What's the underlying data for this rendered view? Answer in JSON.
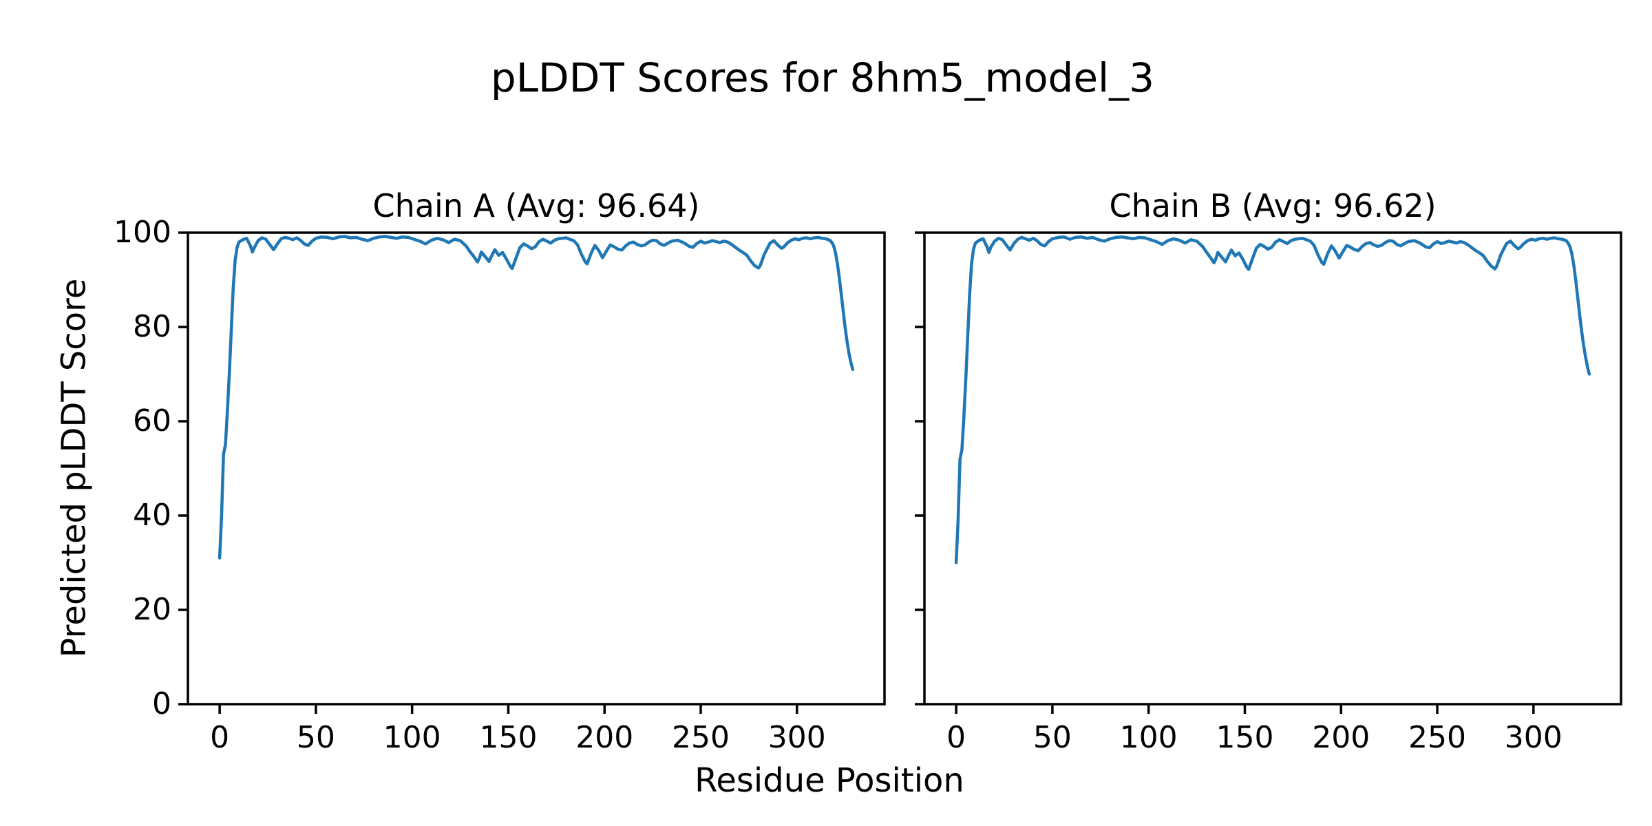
{
  "figure": {
    "suptitle": "pLDDT Scores for 8hm5_model_3",
    "xlabel": "Residue Position",
    "ylabel": "Predicted pLDDT Score"
  },
  "chart_data": [
    {
      "type": "line",
      "title": "Chain A (Avg: 96.64)",
      "chain": "A",
      "average_plddt": 96.64,
      "line_color": "#1f77b4",
      "xlim": [
        -16.5,
        345.5
      ],
      "ylim": [
        0,
        100
      ],
      "xticks": [
        0,
        50,
        100,
        150,
        200,
        250,
        300
      ],
      "yticks": [
        0,
        20,
        40,
        60,
        80,
        100
      ],
      "ytick_labels_visible": true,
      "grid": false,
      "legend": "none",
      "points": [
        [
          0,
          31
        ],
        [
          1,
          40
        ],
        [
          2,
          53
        ],
        [
          3,
          55
        ],
        [
          4,
          62
        ],
        [
          5,
          70
        ],
        [
          6,
          79
        ],
        [
          7,
          88
        ],
        [
          8,
          94
        ],
        [
          9,
          96.8
        ],
        [
          10,
          98.0
        ],
        [
          12,
          98.5
        ],
        [
          14,
          98.8
        ],
        [
          16,
          97.2
        ],
        [
          17,
          95.9
        ],
        [
          18,
          96.8
        ],
        [
          20,
          98.3
        ],
        [
          22,
          98.9
        ],
        [
          24,
          98.6
        ],
        [
          26,
          97.5
        ],
        [
          28,
          96.4
        ],
        [
          30,
          97.6
        ],
        [
          32,
          98.7
        ],
        [
          34,
          99.0
        ],
        [
          36,
          98.8
        ],
        [
          38,
          98.5
        ],
        [
          40,
          98.9
        ],
        [
          42,
          98.4
        ],
        [
          44,
          97.6
        ],
        [
          46,
          97.3
        ],
        [
          48,
          98.2
        ],
        [
          50,
          98.8
        ],
        [
          53,
          99.1
        ],
        [
          56,
          99.0
        ],
        [
          59,
          98.7
        ],
        [
          62,
          99.1
        ],
        [
          65,
          99.2
        ],
        [
          68,
          98.9
        ],
        [
          71,
          99.0
        ],
        [
          74,
          98.6
        ],
        [
          77,
          98.3
        ],
        [
          80,
          98.8
        ],
        [
          83,
          99.1
        ],
        [
          86,
          99.2
        ],
        [
          89,
          99.0
        ],
        [
          92,
          98.8
        ],
        [
          95,
          99.1
        ],
        [
          98,
          99.0
        ],
        [
          101,
          98.6
        ],
        [
          104,
          98.2
        ],
        [
          107,
          97.6
        ],
        [
          110,
          98.4
        ],
        [
          113,
          98.8
        ],
        [
          116,
          98.5
        ],
        [
          119,
          97.9
        ],
        [
          122,
          98.6
        ],
        [
          125,
          98.3
        ],
        [
          128,
          97.2
        ],
        [
          130,
          96.0
        ],
        [
          132,
          95.0
        ],
        [
          134,
          93.8
        ],
        [
          135,
          94.6
        ],
        [
          136,
          95.9
        ],
        [
          138,
          94.9
        ],
        [
          140,
          93.9
        ],
        [
          141,
          94.8
        ],
        [
          143,
          96.4
        ],
        [
          145,
          95.2
        ],
        [
          147,
          95.8
        ],
        [
          149,
          94.4
        ],
        [
          151,
          92.9
        ],
        [
          152,
          92.4
        ],
        [
          154,
          94.6
        ],
        [
          156,
          96.8
        ],
        [
          158,
          97.6
        ],
        [
          160,
          97.2
        ],
        [
          162,
          96.6
        ],
        [
          164,
          97.0
        ],
        [
          166,
          98.1
        ],
        [
          168,
          98.6
        ],
        [
          170,
          98.2
        ],
        [
          172,
          97.8
        ],
        [
          174,
          98.4
        ],
        [
          176,
          98.7
        ],
        [
          178,
          98.8
        ],
        [
          180,
          98.9
        ],
        [
          182,
          98.6
        ],
        [
          184,
          98.3
        ],
        [
          186,
          97.4
        ],
        [
          188,
          95.4
        ],
        [
          190,
          93.8
        ],
        [
          191,
          93.4
        ],
        [
          193,
          95.6
        ],
        [
          195,
          97.3
        ],
        [
          197,
          96.2
        ],
        [
          199,
          94.7
        ],
        [
          201,
          96.1
        ],
        [
          203,
          97.4
        ],
        [
          205,
          97.0
        ],
        [
          207,
          96.5
        ],
        [
          209,
          96.3
        ],
        [
          211,
          97.2
        ],
        [
          213,
          97.8
        ],
        [
          215,
          98.0
        ],
        [
          217,
          97.5
        ],
        [
          219,
          97.2
        ],
        [
          221,
          97.4
        ],
        [
          223,
          98.0
        ],
        [
          225,
          98.4
        ],
        [
          227,
          98.3
        ],
        [
          229,
          97.6
        ],
        [
          231,
          97.3
        ],
        [
          233,
          97.8
        ],
        [
          235,
          98.2
        ],
        [
          238,
          98.4
        ],
        [
          241,
          97.9
        ],
        [
          244,
          97.1
        ],
        [
          246,
          96.9
        ],
        [
          248,
          97.7
        ],
        [
          250,
          98.2
        ],
        [
          252,
          97.8
        ],
        [
          254,
          98.0
        ],
        [
          256,
          98.3
        ],
        [
          258,
          98.1
        ],
        [
          260,
          97.9
        ],
        [
          262,
          98.2
        ],
        [
          264,
          98.0
        ],
        [
          266,
          97.5
        ],
        [
          268,
          96.9
        ],
        [
          270,
          96.3
        ],
        [
          272,
          95.8
        ],
        [
          274,
          95.2
        ],
        [
          276,
          94.0
        ],
        [
          278,
          93.0
        ],
        [
          280,
          92.5
        ],
        [
          281,
          93.1
        ],
        [
          283,
          95.4
        ],
        [
          285,
          97.0
        ],
        [
          286,
          97.8
        ],
        [
          288,
          98.3
        ],
        [
          290,
          97.4
        ],
        [
          292,
          96.7
        ],
        [
          293,
          96.9
        ],
        [
          295,
          97.8
        ],
        [
          297,
          98.4
        ],
        [
          299,
          98.7
        ],
        [
          301,
          98.5
        ],
        [
          303,
          98.8
        ],
        [
          305,
          98.9
        ],
        [
          307,
          98.7
        ],
        [
          309,
          98.9
        ],
        [
          311,
          99.0
        ],
        [
          313,
          98.8
        ],
        [
          315,
          98.7
        ],
        [
          317,
          98.4
        ],
        [
          318,
          98.0
        ],
        [
          319,
          97.3
        ],
        [
          320,
          95.8
        ],
        [
          321,
          93.5
        ],
        [
          322,
          90.5
        ],
        [
          323,
          87.0
        ],
        [
          324,
          83.5
        ],
        [
          325,
          80.0
        ],
        [
          326,
          77.0
        ],
        [
          327,
          74.5
        ],
        [
          328,
          72.5
        ],
        [
          329,
          71.0
        ]
      ]
    },
    {
      "type": "line",
      "title": "Chain B (Avg: 96.62)",
      "chain": "B",
      "average_plddt": 96.62,
      "line_color": "#1f77b4",
      "xlim": [
        -16.5,
        345.5
      ],
      "ylim": [
        0,
        100
      ],
      "xticks": [
        0,
        50,
        100,
        150,
        200,
        250,
        300
      ],
      "yticks": [
        0,
        20,
        40,
        60,
        80,
        100
      ],
      "ytick_labels_visible": false,
      "grid": false,
      "legend": "none",
      "points": [
        [
          0,
          30
        ],
        [
          1,
          39
        ],
        [
          2,
          52
        ],
        [
          3,
          54
        ],
        [
          4,
          61
        ],
        [
          5,
          69
        ],
        [
          6,
          78
        ],
        [
          7,
          87
        ],
        [
          8,
          93.5
        ],
        [
          9,
          96.5
        ],
        [
          10,
          97.8
        ],
        [
          12,
          98.4
        ],
        [
          14,
          98.7
        ],
        [
          16,
          97.0
        ],
        [
          17,
          95.8
        ],
        [
          18,
          96.9
        ],
        [
          20,
          98.2
        ],
        [
          22,
          98.8
        ],
        [
          24,
          98.5
        ],
        [
          26,
          97.4
        ],
        [
          28,
          96.3
        ],
        [
          30,
          97.7
        ],
        [
          32,
          98.6
        ],
        [
          34,
          99.0
        ],
        [
          36,
          98.7
        ],
        [
          38,
          98.4
        ],
        [
          40,
          98.8
        ],
        [
          42,
          98.3
        ],
        [
          44,
          97.5
        ],
        [
          46,
          97.2
        ],
        [
          48,
          98.1
        ],
        [
          50,
          98.7
        ],
        [
          53,
          99.0
        ],
        [
          56,
          99.1
        ],
        [
          59,
          98.6
        ],
        [
          62,
          99.0
        ],
        [
          65,
          99.1
        ],
        [
          68,
          98.8
        ],
        [
          71,
          99.0
        ],
        [
          74,
          98.5
        ],
        [
          77,
          98.2
        ],
        [
          80,
          98.7
        ],
        [
          83,
          99.0
        ],
        [
          86,
          99.1
        ],
        [
          89,
          98.9
        ],
        [
          92,
          98.7
        ],
        [
          95,
          99.0
        ],
        [
          98,
          98.9
        ],
        [
          101,
          98.5
        ],
        [
          104,
          98.1
        ],
        [
          107,
          97.5
        ],
        [
          110,
          98.3
        ],
        [
          113,
          98.7
        ],
        [
          116,
          98.4
        ],
        [
          119,
          97.8
        ],
        [
          122,
          98.5
        ],
        [
          125,
          98.2
        ],
        [
          128,
          97.1
        ],
        [
          130,
          95.9
        ],
        [
          132,
          94.8
        ],
        [
          134,
          93.6
        ],
        [
          135,
          94.5
        ],
        [
          136,
          95.8
        ],
        [
          138,
          94.8
        ],
        [
          140,
          93.8
        ],
        [
          141,
          94.7
        ],
        [
          143,
          96.3
        ],
        [
          145,
          95.1
        ],
        [
          147,
          95.7
        ],
        [
          149,
          94.3
        ],
        [
          151,
          92.7
        ],
        [
          152,
          92.2
        ],
        [
          154,
          94.5
        ],
        [
          156,
          96.7
        ],
        [
          158,
          97.5
        ],
        [
          160,
          97.1
        ],
        [
          162,
          96.5
        ],
        [
          164,
          96.9
        ],
        [
          166,
          98.0
        ],
        [
          168,
          98.5
        ],
        [
          170,
          98.1
        ],
        [
          172,
          97.7
        ],
        [
          174,
          98.3
        ],
        [
          176,
          98.6
        ],
        [
          178,
          98.7
        ],
        [
          180,
          98.8
        ],
        [
          182,
          98.5
        ],
        [
          184,
          98.2
        ],
        [
          186,
          97.3
        ],
        [
          188,
          95.3
        ],
        [
          190,
          93.7
        ],
        [
          191,
          93.3
        ],
        [
          193,
          95.5
        ],
        [
          195,
          97.2
        ],
        [
          197,
          96.1
        ],
        [
          199,
          94.6
        ],
        [
          201,
          96.0
        ],
        [
          203,
          97.3
        ],
        [
          205,
          96.9
        ],
        [
          207,
          96.4
        ],
        [
          209,
          96.2
        ],
        [
          211,
          97.1
        ],
        [
          213,
          97.7
        ],
        [
          215,
          97.9
        ],
        [
          217,
          97.4
        ],
        [
          219,
          97.1
        ],
        [
          221,
          97.3
        ],
        [
          223,
          97.9
        ],
        [
          225,
          98.3
        ],
        [
          227,
          98.2
        ],
        [
          229,
          97.5
        ],
        [
          231,
          97.2
        ],
        [
          233,
          97.7
        ],
        [
          235,
          98.1
        ],
        [
          238,
          98.3
        ],
        [
          241,
          97.8
        ],
        [
          244,
          97.0
        ],
        [
          246,
          96.8
        ],
        [
          248,
          97.6
        ],
        [
          250,
          98.1
        ],
        [
          252,
          97.7
        ],
        [
          254,
          97.9
        ],
        [
          256,
          98.2
        ],
        [
          258,
          98.0
        ],
        [
          260,
          97.8
        ],
        [
          262,
          98.1
        ],
        [
          264,
          97.9
        ],
        [
          266,
          97.4
        ],
        [
          268,
          96.8
        ],
        [
          270,
          96.2
        ],
        [
          272,
          95.7
        ],
        [
          274,
          95.1
        ],
        [
          276,
          93.9
        ],
        [
          278,
          92.9
        ],
        [
          280,
          92.3
        ],
        [
          281,
          93.0
        ],
        [
          283,
          95.3
        ],
        [
          285,
          96.9
        ],
        [
          286,
          97.7
        ],
        [
          288,
          98.2
        ],
        [
          290,
          97.3
        ],
        [
          292,
          96.6
        ],
        [
          293,
          96.8
        ],
        [
          295,
          97.7
        ],
        [
          297,
          98.3
        ],
        [
          299,
          98.6
        ],
        [
          301,
          98.4
        ],
        [
          303,
          98.7
        ],
        [
          305,
          98.8
        ],
        [
          307,
          98.6
        ],
        [
          309,
          98.8
        ],
        [
          311,
          98.9
        ],
        [
          313,
          98.7
        ],
        [
          315,
          98.6
        ],
        [
          317,
          98.3
        ],
        [
          318,
          97.8
        ],
        [
          319,
          97.0
        ],
        [
          320,
          95.4
        ],
        [
          321,
          93.0
        ],
        [
          322,
          89.8
        ],
        [
          323,
          86.2
        ],
        [
          324,
          82.6
        ],
        [
          325,
          79.2
        ],
        [
          326,
          76.2
        ],
        [
          327,
          73.8
        ],
        [
          328,
          71.6
        ],
        [
          329,
          70.0
        ]
      ]
    }
  ],
  "layout": {
    "axis_color": "#000000",
    "background_color": "#ffffff"
  }
}
